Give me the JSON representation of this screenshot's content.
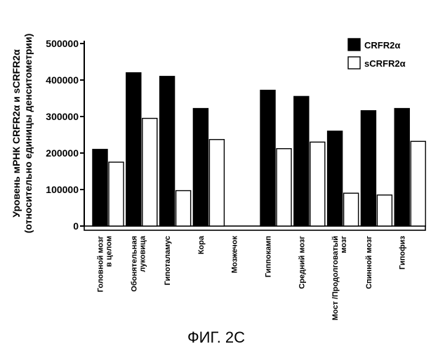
{
  "figure_caption": "ФИГ. 2С",
  "chart_data": {
    "type": "bar",
    "title": "",
    "xlabel": "",
    "ylabel_lines": [
      "Уровень мРНК CRFR2α и sCRFR2α",
      "(относительно единицы денситометрии)"
    ],
    "ylim": [
      0,
      500000
    ],
    "yticks": [
      0,
      100000,
      200000,
      300000,
      400000,
      500000
    ],
    "ytick_labels": [
      "0",
      "100000",
      "200000",
      "300000",
      "400000",
      "500000"
    ],
    "legend_position": "top-right",
    "categories": [
      [
        "Головной мозг",
        "в целом"
      ],
      [
        "Обонятельная",
        "луковица"
      ],
      [
        "Гипоталамус"
      ],
      [
        "Кора"
      ],
      [
        "Мозжечок"
      ],
      [
        "Гиппокамп"
      ],
      [
        "Средний мозг"
      ],
      [
        "Мост /Продолговатый",
        "мозг"
      ],
      [
        "Спинной мозг"
      ],
      [
        "Гипофиз"
      ]
    ],
    "series": [
      {
        "name": "CRFR2α",
        "fill": "#000000",
        "values": [
          210000,
          420000,
          410000,
          322000,
          0,
          372000,
          355000,
          260000,
          316000,
          322000
        ]
      },
      {
        "name": "sCRFR2α",
        "fill": "#ffffff",
        "values": [
          175000,
          295000,
          97000,
          237000,
          0,
          212000,
          230000,
          90000,
          85000,
          232000
        ]
      }
    ]
  }
}
